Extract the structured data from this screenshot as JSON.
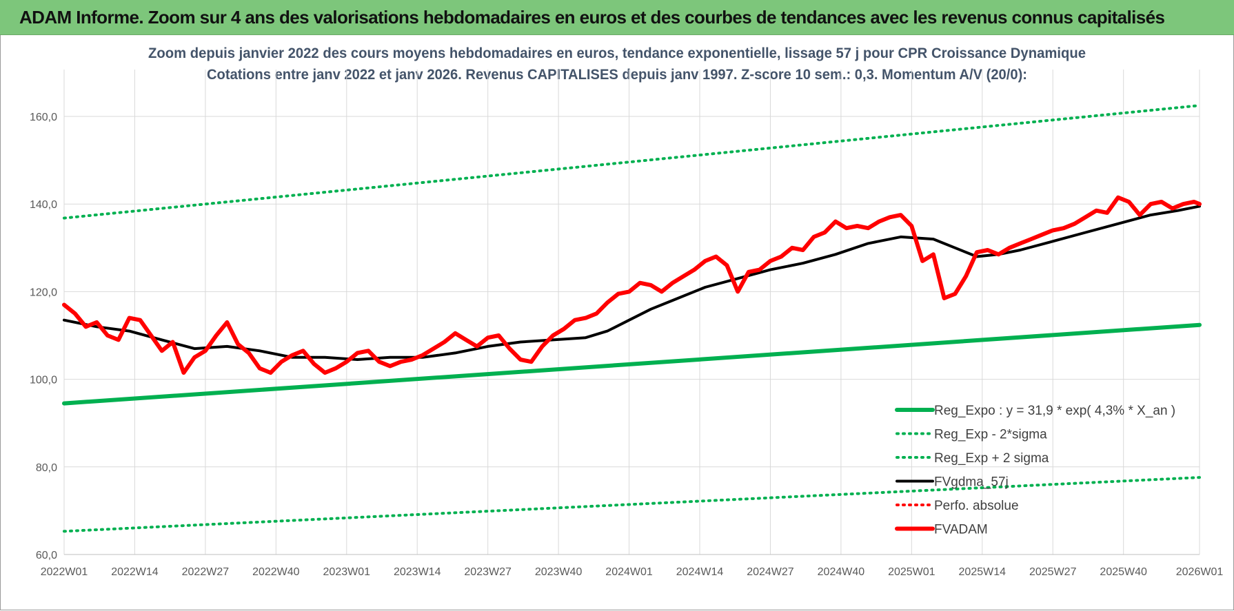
{
  "header": {
    "title": "ADAM Informe. Zoom sur 4 ans des valorisations hebdomadaires en euros et des courbes de tendances avec les revenus connus capitalisés"
  },
  "colors": {
    "banner": "#7dc67b",
    "reg_expo": "#00b050",
    "fvgdma": "#000000",
    "fvadam": "#ff0000",
    "perfo": "#ff0000",
    "grid": "#d9d9d9",
    "title_text": "#44546a"
  },
  "chart_data": {
    "type": "line",
    "title": "Zoom depuis janvier 2022 des cours moyens hebdomadaires en euros, tendance exponentielle, lissage 57 j pour CPR Croissance Dynamique",
    "subtitle": "Cotations entre janv 2022 et janv 2026. Revenus CAPITALISES depuis janv 1997. Z-score 10 sem.: 0,3. Momentum A/V (20/0):",
    "xlabel": "",
    "ylabel": "",
    "ylim": [
      60,
      160
    ],
    "y_ticks": [
      "160,0",
      "140,0",
      "120,0",
      "100,0",
      "80,0",
      "60,0"
    ],
    "x_ticks": [
      "2022W01",
      "2022W14",
      "2022W27",
      "2022W40",
      "2023W01",
      "2023W14",
      "2023W27",
      "2023W40",
      "2024W01",
      "2024W14",
      "2024W27",
      "2024W40",
      "2025W01",
      "2025W14",
      "2025W27",
      "2025W40",
      "2026W01"
    ],
    "x_tick_week_index": [
      0,
      13,
      26,
      39,
      52,
      65,
      78,
      91,
      104,
      117,
      130,
      143,
      156,
      169,
      182,
      195,
      209
    ],
    "n_weeks": 210,
    "grid": true,
    "legend_position": "bottom-right",
    "series": [
      {
        "name": "Reg_Expo : y = 31,9 * exp( 4,3% *  X_an )",
        "style": "solid-thick",
        "color": "#00b050",
        "x": [
          0,
          209
        ],
        "values": [
          94.5,
          112.4
        ]
      },
      {
        "name": "Reg_Exp - 2*sigma",
        "style": "dotted",
        "color": "#00b050",
        "x": [
          0,
          209
        ],
        "values": [
          65.3,
          77.6
        ]
      },
      {
        "name": "Reg_Exp + 2 sigma",
        "style": "dotted",
        "color": "#00b050",
        "x": [
          0,
          209
        ],
        "values": [
          136.8,
          162.5
        ]
      },
      {
        "name": "FVgdma_57j",
        "style": "solid",
        "color": "#000000",
        "x": [
          0,
          6,
          12,
          18,
          24,
          30,
          36,
          42,
          48,
          54,
          60,
          66,
          72,
          78,
          84,
          90,
          96,
          100,
          104,
          108,
          112,
          118,
          124,
          130,
          136,
          142,
          148,
          154,
          160,
          164,
          168,
          172,
          176,
          182,
          188,
          194,
          200,
          205,
          209
        ],
        "values": [
          113.5,
          112.0,
          111.0,
          109.0,
          107.0,
          107.5,
          106.5,
          105.0,
          105.0,
          104.5,
          105.0,
          105.0,
          106.0,
          107.5,
          108.5,
          109.0,
          109.5,
          111.0,
          113.5,
          116.0,
          118.0,
          121.0,
          123.0,
          125.0,
          126.5,
          128.5,
          131.0,
          132.5,
          132.0,
          130.0,
          128.0,
          128.5,
          129.5,
          131.5,
          133.5,
          135.5,
          137.5,
          138.5,
          139.5
        ]
      },
      {
        "name": "Perfo. absolue",
        "style": "dotted",
        "color": "#ff0000",
        "x": [],
        "values": []
      },
      {
        "name": "FVADAM",
        "style": "solid-thick",
        "color": "#ff0000",
        "x": [
          0,
          2,
          4,
          6,
          8,
          10,
          12,
          14,
          16,
          18,
          20,
          22,
          24,
          26,
          28,
          30,
          32,
          34,
          36,
          38,
          40,
          42,
          44,
          46,
          48,
          50,
          52,
          54,
          56,
          58,
          60,
          62,
          64,
          66,
          68,
          70,
          72,
          74,
          76,
          78,
          80,
          82,
          84,
          86,
          88,
          90,
          92,
          94,
          96,
          98,
          100,
          102,
          104,
          106,
          108,
          110,
          112,
          114,
          116,
          118,
          120,
          122,
          124,
          126,
          128,
          130,
          132,
          134,
          136,
          138,
          140,
          142,
          144,
          146,
          148,
          150,
          152,
          154,
          156,
          158,
          160,
          162,
          164,
          166,
          168,
          170,
          172,
          174,
          176,
          178,
          180,
          182,
          184,
          186,
          188,
          190,
          192,
          194,
          196,
          198,
          200,
          202,
          204,
          206,
          208,
          209
        ],
        "values": [
          117.0,
          115.0,
          112.0,
          113.0,
          110.0,
          109.0,
          114.0,
          113.5,
          110.0,
          106.5,
          108.5,
          101.5,
          105.0,
          106.5,
          110.0,
          113.0,
          108.0,
          106.0,
          102.5,
          101.5,
          104.0,
          105.5,
          106.5,
          103.5,
          101.5,
          102.5,
          104.0,
          106.0,
          106.5,
          104.0,
          103.0,
          104.0,
          104.5,
          105.5,
          107.0,
          108.5,
          110.5,
          109.0,
          107.5,
          109.5,
          110.0,
          107.0,
          104.5,
          104.0,
          107.5,
          110.0,
          111.5,
          113.5,
          114.0,
          115.0,
          117.5,
          119.5,
          120.0,
          122.0,
          121.5,
          120.0,
          122.0,
          123.5,
          125.0,
          127.0,
          128.0,
          126.0,
          120.0,
          124.5,
          125.0,
          127.0,
          128.0,
          130.0,
          129.5,
          132.5,
          133.5,
          136.0,
          134.5,
          135.0,
          134.5,
          136.0,
          137.0,
          137.5,
          135.0,
          127.0,
          128.5,
          118.5,
          119.5,
          123.5,
          129.0,
          129.5,
          128.5,
          130.0,
          131.0,
          132.0,
          133.0,
          134.0,
          134.5,
          135.5,
          137.0,
          138.5,
          138.0,
          141.5,
          140.5,
          137.5,
          140.0,
          140.5,
          139.0,
          140.0,
          140.5,
          140.0
        ]
      }
    ]
  }
}
